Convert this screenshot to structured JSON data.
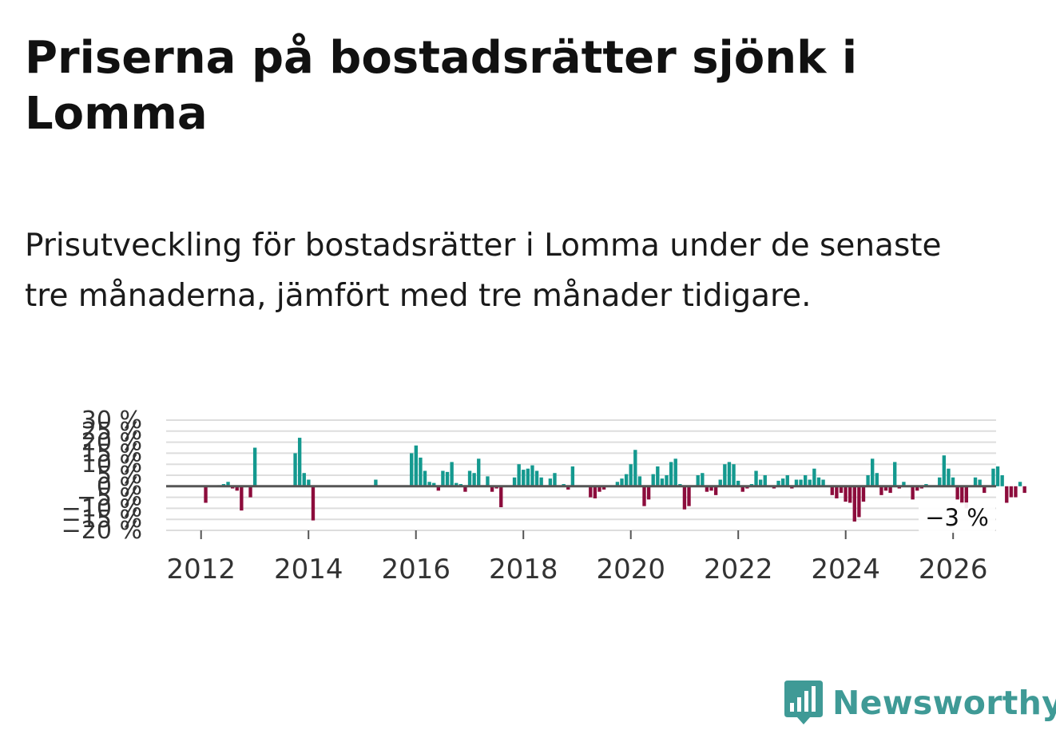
{
  "title": "Priserna på bostadsrätter sjönk i Lomma",
  "subtitle": "Prisutveckling för bostadsrätter i Lomma under de senaste tre månaderna, jämfört med tre månader tidigare.",
  "brand": "Newsworthy",
  "colors": {
    "positive": "#14998f",
    "negative": "#8c0c3c",
    "zero_line": "#555555",
    "grid": "#dddddd",
    "brand": "#3f9a96",
    "axis_text": "#333333"
  },
  "chart_data": {
    "type": "bar",
    "ylim": [
      -20,
      30
    ],
    "y_ticks": [
      -20,
      -15,
      -10,
      -5,
      0,
      5,
      10,
      15,
      20,
      25,
      30
    ],
    "y_tick_labels": [
      "−20 %",
      "−15 %",
      "−10 %",
      "−5 %",
      "0 %",
      "5 %",
      "10 %",
      "15 %",
      "20 %",
      "25 %",
      "30 %"
    ],
    "x_ticks": [
      2012,
      2014,
      2016,
      2018,
      2020,
      2022,
      2024,
      2026
    ],
    "x_tick_labels": [
      "2012",
      "2014",
      "2016",
      "2018",
      "2020",
      "2022",
      "2024",
      "2026"
    ],
    "xlim": [
      2011.35,
      2026.8
    ],
    "start_year": 2011.42,
    "step": 0.0833,
    "annotation": {
      "text": "−3 %",
      "value": -3
    },
    "values": [
      0,
      0,
      0,
      0,
      0,
      0,
      0,
      0,
      -7.5,
      0,
      0,
      0.5,
      1,
      2,
      -1,
      -2,
      -11,
      0,
      -5,
      17.5,
      0,
      0,
      0,
      0,
      0,
      0,
      0,
      0,
      15,
      22,
      6,
      3,
      -15.5,
      0,
      0,
      0,
      0,
      0,
      0,
      0,
      0,
      0,
      0,
      0,
      0,
      0,
      3,
      0,
      0,
      0,
      0,
      0,
      0,
      0,
      15,
      18.5,
      13,
      7,
      2,
      1.5,
      -2,
      7,
      6.5,
      11,
      1.5,
      1,
      -2.5,
      7,
      6,
      12.5,
      0,
      4.5,
      -2.5,
      -1,
      -9.5,
      0,
      0,
      4,
      10,
      7.5,
      8,
      9.5,
      7,
      4,
      0,
      3.5,
      6,
      0,
      1,
      -1.5,
      9,
      0,
      0,
      0,
      -5,
      -5.5,
      -2.5,
      -1.5,
      0,
      0,
      2,
      3.5,
      5.5,
      10,
      16.5,
      4.5,
      -9,
      -6,
      5.5,
      9,
      3.5,
      5,
      11,
      12.5,
      1,
      -10.5,
      -9,
      0,
      5,
      6,
      -2.5,
      -2,
      -4,
      3,
      10,
      11,
      10,
      2.5,
      -2.5,
      -1,
      1,
      7,
      3,
      5,
      0,
      -1,
      2.5,
      3.5,
      5,
      -1,
      3,
      3,
      5,
      3,
      8,
      4,
      3,
      0,
      -4,
      -5.5,
      -3,
      -7,
      -7.5,
      -16,
      -14,
      -7,
      5,
      12.5,
      6,
      -4,
      -2,
      -3,
      11,
      -1,
      2,
      0,
      -6,
      -2,
      -1,
      1,
      0,
      0,
      4,
      14,
      8,
      4,
      -6,
      -8,
      -10,
      0,
      4,
      3,
      -3,
      0,
      8,
      9,
      5,
      -7.5,
      -5,
      -5,
      2,
      -3
    ]
  }
}
